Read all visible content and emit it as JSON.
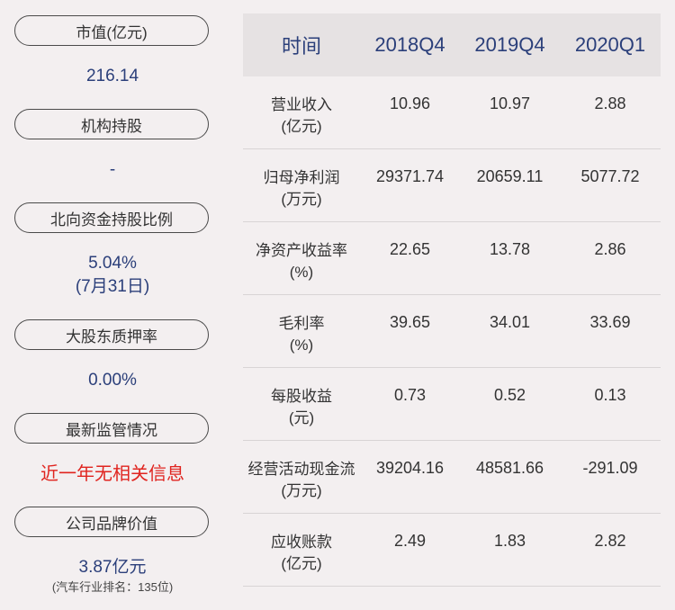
{
  "left": {
    "items": [
      {
        "label": "市值(亿元)",
        "value": "216.14"
      },
      {
        "label": "机构持股",
        "value": "-"
      },
      {
        "label": "北向资金持股比例",
        "value": "5.04%",
        "value2": "(7月31日)"
      },
      {
        "label": "大股东质押率",
        "value": "0.00%"
      },
      {
        "label": "最新监管情况",
        "value": "近一年无相关信息"
      },
      {
        "label": "公司品牌价值",
        "value": "3.87亿元",
        "note": "(汽车行业排名：135位)"
      }
    ]
  },
  "table": {
    "headers": [
      "时间",
      "2018Q4",
      "2019Q4",
      "2020Q1"
    ],
    "rows": [
      {
        "name": "营业收入",
        "unit": "(亿元)",
        "values": [
          "10.96",
          "10.97",
          "2.88"
        ]
      },
      {
        "name": "归母净利润",
        "unit": "(万元)",
        "values": [
          "29371.74",
          "20659.11",
          "5077.72"
        ]
      },
      {
        "name": "净资产收益率",
        "unit": "(%)",
        "values": [
          "22.65",
          "13.78",
          "2.86"
        ]
      },
      {
        "name": "毛利率",
        "unit": "(%)",
        "values": [
          "39.65",
          "34.01",
          "33.69"
        ]
      },
      {
        "name": "每股收益",
        "unit": "(元)",
        "values": [
          "0.73",
          "0.52",
          "0.13"
        ]
      },
      {
        "name": "经营活动现金流",
        "unit": "(万元)",
        "values": [
          "39204.16",
          "48581.66",
          "-291.09"
        ]
      },
      {
        "name": "应收账款",
        "unit": "(亿元)",
        "values": [
          "2.49",
          "1.83",
          "2.82"
        ]
      }
    ]
  }
}
